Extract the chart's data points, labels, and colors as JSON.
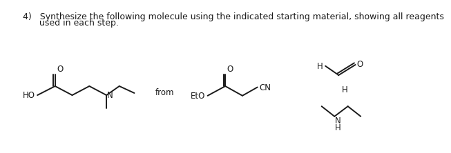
{
  "title_line1": "4)   Synthesize the following molecule using the indicated starting material, showing all reagents",
  "title_line2": "      used in each step.",
  "from_text": "from",
  "bg_color": "#ffffff",
  "line_color": "#1a1a1a",
  "text_color": "#1a1a1a",
  "fontsize_title": 9.0,
  "fontsize_label": 8.5
}
